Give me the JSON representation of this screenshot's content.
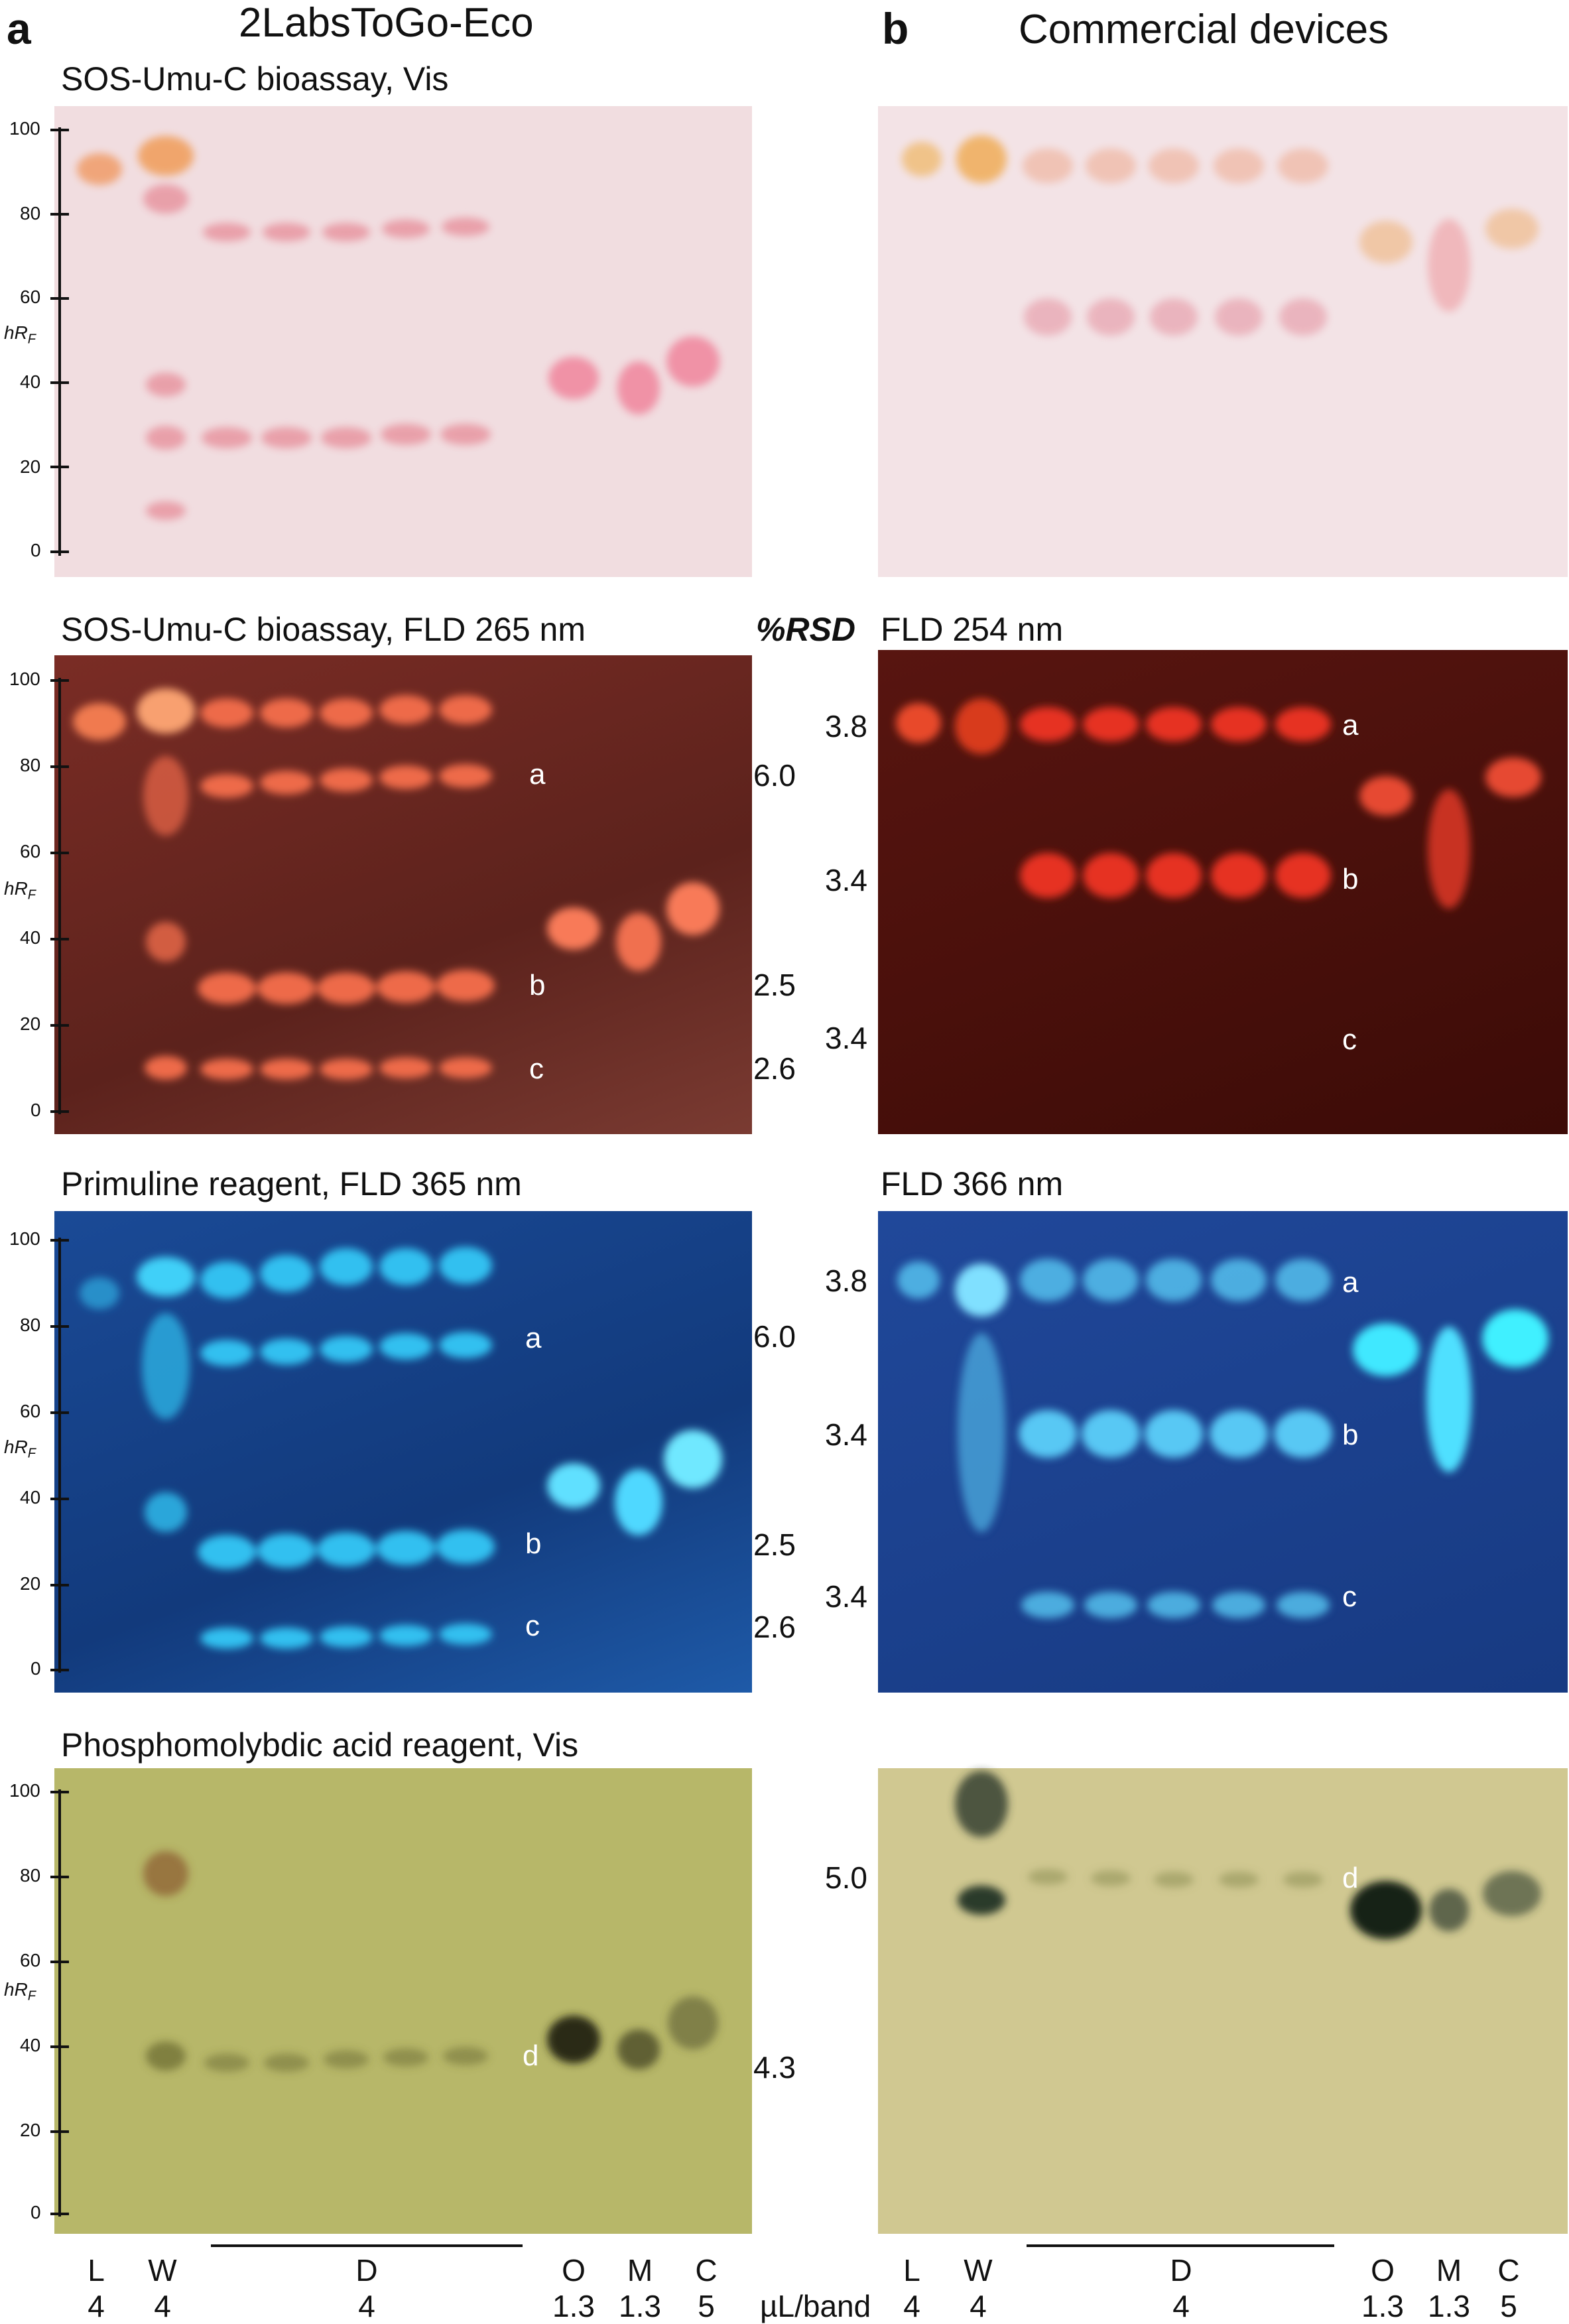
{
  "panels": {
    "left": {
      "letter": "a",
      "header": "2LabsToGo-Eco"
    },
    "right": {
      "letter": "b",
      "header": "Commercial devices"
    }
  },
  "rsd_header": "%RSD",
  "axis": {
    "label_main": "hR",
    "label_sub": "F",
    "ticks": [
      "100",
      "80",
      "60",
      "40",
      "20",
      "0"
    ]
  },
  "rows": [
    {
      "left_title": "SOS-Umu-C bioassay, Vis",
      "right_title": "",
      "left_rsd": [],
      "right_rsd": [],
      "left_bands": [],
      "right_bands": [],
      "left_color": "#f1dde0",
      "right_color": "#f3e3e6"
    },
    {
      "left_title": "SOS-Umu-C bioassay, FLD 265 nm",
      "right_title": "FLD 254 nm",
      "left_rsd": [
        "6.0",
        "2.5",
        "2.6"
      ],
      "right_rsd": [
        "3.8",
        "3.4",
        "3.4"
      ],
      "left_bands": [
        "a",
        "b",
        "c"
      ],
      "right_bands": [
        "a",
        "b",
        "c"
      ],
      "left_color": "#6e2a24",
      "right_color": "#4a0f0b"
    },
    {
      "left_title": "Primuline reagent, FLD 365 nm",
      "right_title": "FLD 366 nm",
      "left_rsd": [
        "6.0",
        "2.5",
        "2.6"
      ],
      "right_rsd": [
        "3.8",
        "3.4",
        "3.4"
      ],
      "left_bands": [
        "a",
        "b",
        "c"
      ],
      "right_bands": [
        "a",
        "b",
        "c"
      ],
      "left_color": "#1d4f9a",
      "right_color": "#1e4490"
    },
    {
      "left_title": "Phosphomolybdic acid reagent, Vis",
      "right_title": "",
      "left_rsd": [
        "4.3"
      ],
      "right_rsd": [
        "5.0"
      ],
      "left_bands": [
        "d"
      ],
      "right_bands": [
        "d"
      ],
      "left_color": "#b8b868",
      "right_color": "#cfc78f"
    }
  ],
  "lanes": [
    {
      "name": "L",
      "volume": "4"
    },
    {
      "name": "W",
      "volume": "4"
    },
    {
      "name": "D",
      "volume": "4"
    },
    {
      "name": "O",
      "volume": "1.3"
    },
    {
      "name": "M",
      "volume": "1.3"
    },
    {
      "name": "C",
      "volume": "5"
    }
  ],
  "volume_unit": "µL/band"
}
